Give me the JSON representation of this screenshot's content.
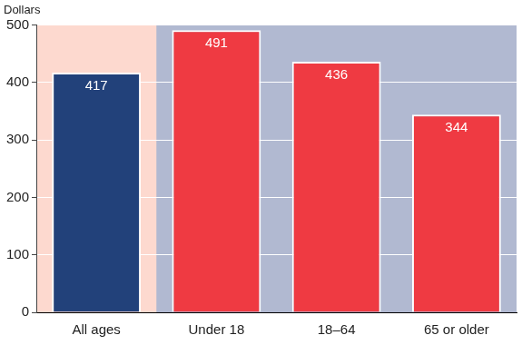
{
  "chart_data": {
    "type": "bar",
    "ylabel": "Dollars",
    "categories": [
      "All ages",
      "Under 18",
      "18–64",
      "65 or older"
    ],
    "values": [
      417,
      491,
      436,
      344
    ],
    "colors": [
      "#22417a",
      "#ef3a42",
      "#ef3a42",
      "#ef3a42"
    ],
    "ylim": [
      0,
      500
    ],
    "yticks": [
      0,
      100,
      200,
      300,
      400,
      500
    ],
    "grid": true,
    "data_labels": true
  }
}
